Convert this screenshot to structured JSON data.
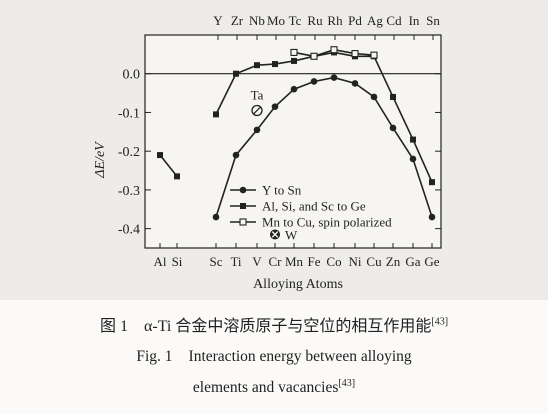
{
  "chart_data": {
    "type": "line",
    "ylabel": "ΔE/eV",
    "xlabel": "Alloying Atoms",
    "ylim": [
      -0.45,
      0.1
    ],
    "yticks": [
      0.0,
      -0.1,
      -0.2,
      -0.3,
      -0.4
    ],
    "ytick_labels": [
      "0.0",
      "-0.1",
      "-0.2",
      "-0.3",
      "-0.4"
    ],
    "bottom_elements": [
      "Al",
      "Si",
      "Sc",
      "Ti",
      "V",
      "Cr",
      "Mn",
      "Fe",
      "Co",
      "Ni",
      "Cu",
      "Zn",
      "Ga",
      "Ge"
    ],
    "top_elements": [
      "Y",
      "Zr",
      "Nb",
      "Mo",
      "Tc",
      "Ru",
      "Rh",
      "Pd",
      "Ag",
      "Cd",
      "In",
      "Sn"
    ],
    "reference_line_y": 0.0,
    "grid": false,
    "legend_position": "bottom-right",
    "series": [
      {
        "name": "Y to Sn",
        "marker": "circle-filled",
        "x": [
          "Sc",
          "Ti",
          "V",
          "Cr",
          "Mn",
          "Fe",
          "Co",
          "Ni",
          "Cu",
          "Zn",
          "Ga",
          "Ge"
        ],
        "values": [
          -0.37,
          -0.21,
          -0.145,
          -0.085,
          -0.04,
          -0.02,
          -0.01,
          -0.025,
          -0.06,
          -0.14,
          -0.22,
          -0.37
        ]
      },
      {
        "name": "Al, Si, and Sc to Ge",
        "marker": "square-filled",
        "segments": [
          {
            "x": [
              "Al",
              "Si"
            ],
            "values": [
              -0.21,
              -0.265
            ]
          },
          {
            "x": [
              "Sc",
              "Ti",
              "V",
              "Cr",
              "Mn",
              "Fe",
              "Co",
              "Ni",
              "Cu",
              "Zn",
              "Ga",
              "Ge"
            ],
            "values": [
              -0.105,
              0.0,
              0.022,
              0.025,
              0.033,
              0.045,
              0.055,
              0.045,
              0.045,
              -0.06,
              -0.17,
              -0.28
            ]
          }
        ]
      },
      {
        "name": "Mn to Cu, spin polarized",
        "marker": "square-open",
        "x": [
          "Mn",
          "Fe",
          "Co",
          "Ni",
          "Cu"
        ],
        "values": [
          0.055,
          0.045,
          0.062,
          0.052,
          0.048
        ]
      }
    ],
    "annotations": [
      {
        "text": "Ta",
        "marker": "circled-slash",
        "x": "V",
        "value": -0.095
      },
      {
        "text": "W",
        "marker": "circled-x",
        "x": "Cr",
        "value": -0.415
      }
    ]
  },
  "caption": {
    "cn_prefix": "图 1",
    "cn_text": "α-Ti 合金中溶质原子与空位的相互作用能",
    "cn_ref": "[43]",
    "en_prefix": "Fig. 1",
    "en_line1": "Interaction energy between alloying",
    "en_line2": "elements and vacancies",
    "en_ref": "[43]"
  }
}
